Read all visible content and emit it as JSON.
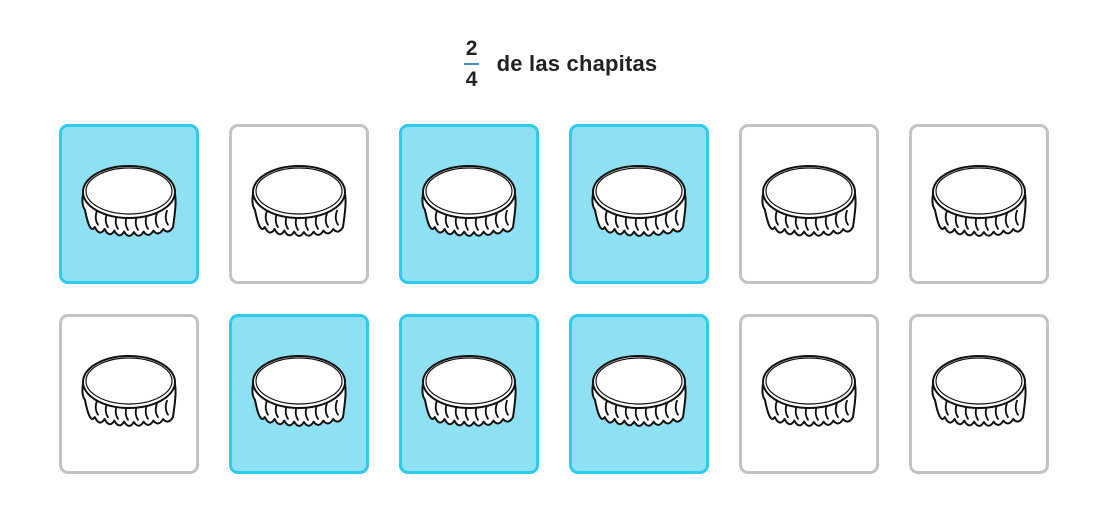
{
  "prompt": {
    "numerator": "2",
    "denominator": "4",
    "text": "de las chapitas"
  },
  "colors": {
    "selected_fill": "#8ee1f2",
    "selected_border": "#2ecbef",
    "unselected_border": "#c3c3c3",
    "fraction_bar": "#4a90d9"
  },
  "cards": [
    {
      "item": "bottle-cap-icon",
      "selected": true
    },
    {
      "item": "bottle-cap-icon",
      "selected": false
    },
    {
      "item": "bottle-cap-icon",
      "selected": true
    },
    {
      "item": "bottle-cap-icon",
      "selected": true
    },
    {
      "item": "bottle-cap-icon",
      "selected": false
    },
    {
      "item": "bottle-cap-icon",
      "selected": false
    },
    {
      "item": "bottle-cap-icon",
      "selected": false
    },
    {
      "item": "bottle-cap-icon",
      "selected": true
    },
    {
      "item": "bottle-cap-icon",
      "selected": true
    },
    {
      "item": "bottle-cap-icon",
      "selected": true
    },
    {
      "item": "bottle-cap-icon",
      "selected": false
    },
    {
      "item": "bottle-cap-icon",
      "selected": false
    }
  ]
}
